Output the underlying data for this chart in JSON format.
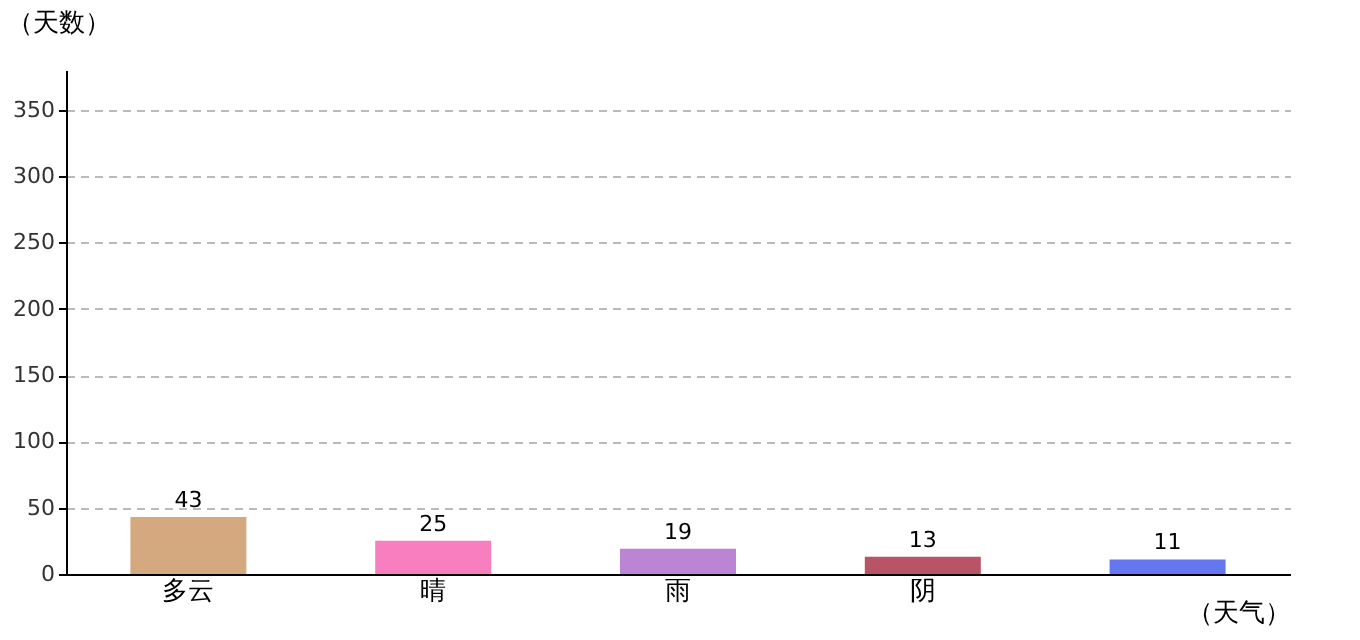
{
  "chart_data": {
    "type": "bar",
    "xlabel": "（天气）",
    "ylabel": "（天数）",
    "categories": [
      "多云",
      "晴",
      "雨",
      "阴",
      null
    ],
    "values": [
      43,
      25,
      19,
      13,
      11
    ],
    "colors": [
      "#d4a97f",
      "#f77fbf",
      "#bb85d4",
      "#b85466",
      "#6477f0"
    ],
    "ylim": [
      0,
      380
    ],
    "yticks": [
      0,
      50,
      100,
      150,
      200,
      250,
      300,
      350
    ],
    "grid": "y",
    "data_labels": true
  }
}
